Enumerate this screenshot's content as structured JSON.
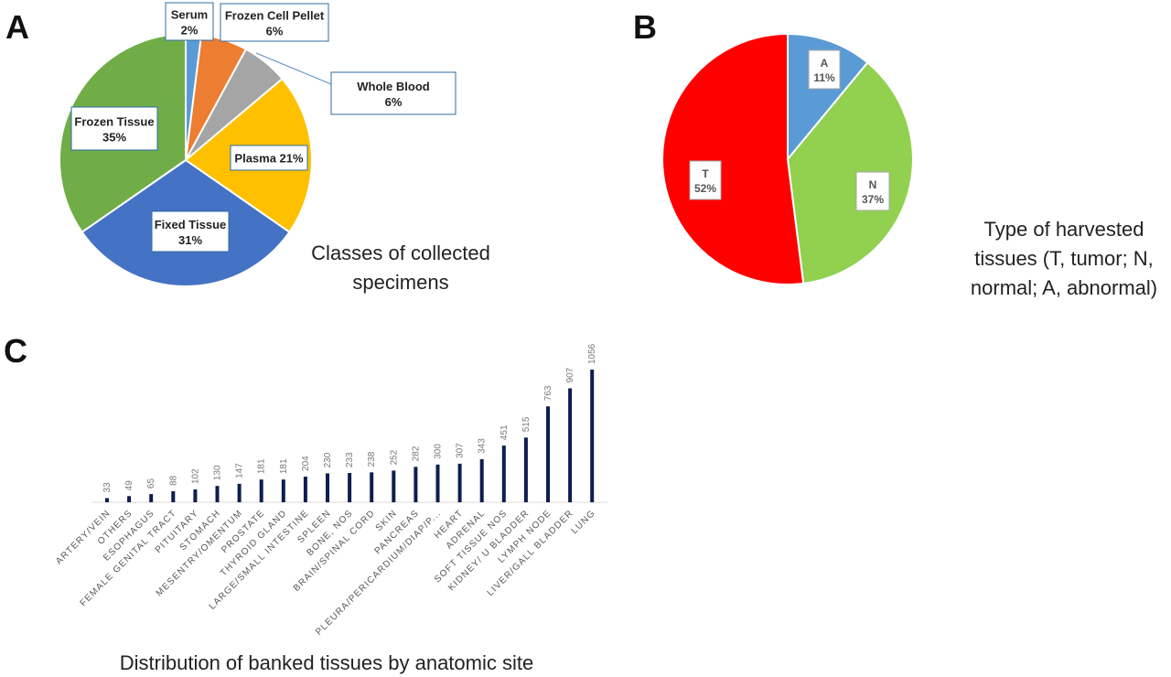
{
  "panels": {
    "a": {
      "letter": "A",
      "caption_lines": [
        "Classes of collected",
        "specimens"
      ]
    },
    "b": {
      "letter": "B",
      "caption_lines": [
        "Type of harvested",
        "tissues (T, tumor; N,",
        "normal; A, abnormal)"
      ]
    },
    "c": {
      "letter": "C",
      "caption": "Distribution of banked tissues by anatomic site"
    }
  },
  "chart_data": [
    {
      "id": "a",
      "type": "pie",
      "slices": [
        {
          "name": "Serum",
          "pct": "2%",
          "value": 2,
          "color": "#5b9bd5"
        },
        {
          "name": "Frozen Cell Pellet",
          "pct": "6%",
          "value": 6,
          "color": "#ed7d31"
        },
        {
          "name": "Whole Blood",
          "pct": "6%",
          "value": 6,
          "color": "#a5a5a5"
        },
        {
          "name": "Plasma",
          "pct": "21%",
          "value": 21,
          "color": "#ffc000"
        },
        {
          "name": "Fixed Tissue",
          "pct": "31%",
          "value": 31,
          "color": "#4472c4"
        },
        {
          "name": "Frozen Tissue",
          "pct": "35%",
          "value": 35,
          "color": "#70ad47"
        }
      ]
    },
    {
      "id": "b",
      "type": "pie",
      "slices": [
        {
          "name": "A",
          "pct": "11%",
          "value": 11,
          "color": "#5b9bd5"
        },
        {
          "name": "N",
          "pct": "37%",
          "value": 37,
          "color": "#92d050"
        },
        {
          "name": "T",
          "pct": "52%",
          "value": 52,
          "color": "#ff0000"
        }
      ]
    },
    {
      "id": "c",
      "type": "bar",
      "color": "#0d1e4f",
      "categories": [
        "ARTERY/VEIN",
        "OTHERS",
        "ESOPHAGUS",
        "FEMALE GENITAL TRACT",
        "PITUITARY",
        "STOMACH",
        "MESENTRY/OMENTUM",
        "PROSTATE",
        "THYROID GLAND",
        "LARGE/SMALL INTESTINE",
        "SPLEEN",
        "BONE, NOS",
        "BRAIN/SPINAL CORD",
        "SKIN",
        "PANCREAS",
        "PLEURA/PERICARDIUM/DIAP/P...",
        "HEART",
        "ADRENAL",
        "SOFT TISSUE NOS",
        "KIDNEY/ U BLADDER",
        "LYMPH NODE",
        "LIVER/GALL BLADDER",
        "LUNG"
      ],
      "values": [
        33,
        49,
        65,
        88,
        102,
        130,
        147,
        181,
        181,
        204,
        230,
        233,
        238,
        252,
        282,
        300,
        307,
        343,
        451,
        515,
        763,
        907,
        1056
      ]
    }
  ]
}
